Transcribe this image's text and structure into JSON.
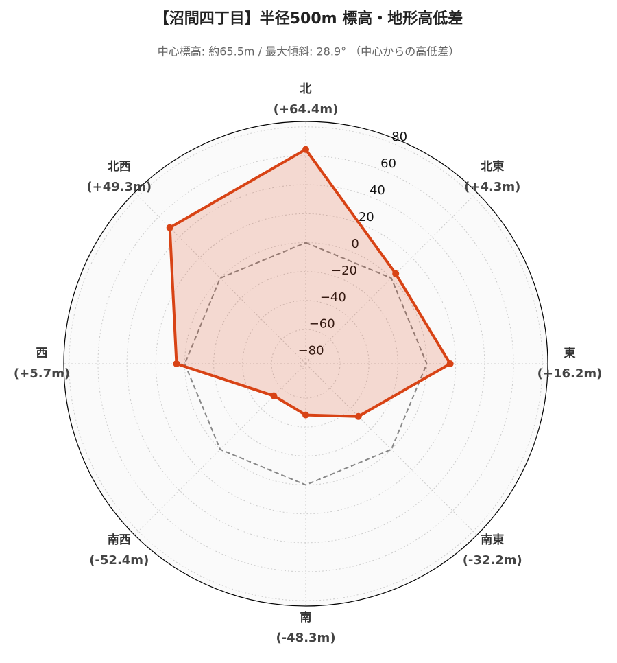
{
  "chart_data": {
    "type": "radar",
    "title": "【沼間四丁目】半径500m 標高・地形高低差",
    "subtitle": "中心標高: 約65.5m / 最大傾斜: 28.9° （中心からの高低差）",
    "categories": [
      "北",
      "北東",
      "東",
      "南東",
      "南",
      "南西",
      "西",
      "北西"
    ],
    "values": [
      64.4,
      4.3,
      16.2,
      -32.2,
      -48.3,
      -52.4,
      5.7,
      49.3
    ],
    "value_labels": [
      "(+64.4m)",
      "(+4.3m)",
      "(+16.2m)",
      "(-32.2m)",
      "(-48.3m)",
      "(-52.4m)",
      "(+5.7m)",
      "(+49.3m)"
    ],
    "color": "#d84315",
    "reference_value": 0,
    "ylim": [
      -83.7,
      83.7
    ],
    "yticks": [
      {
        "value": -80,
        "label": "−80"
      },
      {
        "value": -60,
        "label": "−60"
      },
      {
        "value": -40,
        "label": "−40"
      },
      {
        "value": -20,
        "label": "−20"
      },
      0,
      20,
      40,
      60,
      80
    ],
    "grid": true
  }
}
